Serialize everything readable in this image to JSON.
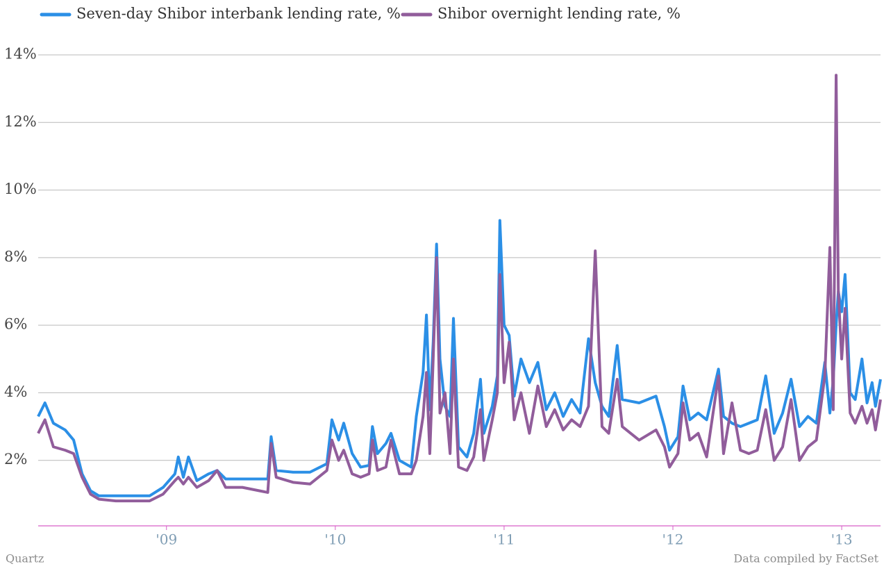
{
  "chart_data": {
    "type": "line",
    "credit": "Quartz",
    "source": "Data compiled by FactSet",
    "legend": "top-left",
    "grid": true,
    "xlim": [
      2008.24,
      2013.23
    ],
    "xticks": [
      {
        "value": 2009,
        "label": "'09"
      },
      {
        "value": 2010,
        "label": "'10"
      },
      {
        "value": 2011,
        "label": "'11"
      },
      {
        "value": 2012,
        "label": "'12"
      },
      {
        "value": 2013,
        "label": "'13"
      }
    ],
    "ylim": [
      0,
      14
    ],
    "yticks": [
      {
        "value": 2,
        "label": "2%"
      },
      {
        "value": 4,
        "label": "4%"
      },
      {
        "value": 6,
        "label": "6%"
      },
      {
        "value": 8,
        "label": "8%"
      },
      {
        "value": 10,
        "label": "10%"
      },
      {
        "value": 12,
        "label": "12%"
      },
      {
        "value": 14,
        "label": "14%"
      }
    ],
    "x": [
      2008.24,
      2008.28,
      2008.33,
      2008.4,
      2008.45,
      2008.5,
      2008.55,
      2008.6,
      2008.7,
      2008.8,
      2008.9,
      2008.98,
      2009.05,
      2009.07,
      2009.1,
      2009.13,
      2009.18,
      2009.25,
      2009.3,
      2009.35,
      2009.45,
      2009.55,
      2009.6,
      2009.62,
      2009.65,
      2009.75,
      2009.85,
      2009.95,
      2009.98,
      2010.02,
      2010.05,
      2010.1,
      2010.15,
      2010.2,
      2010.22,
      2010.25,
      2010.3,
      2010.33,
      2010.38,
      2010.45,
      2010.48,
      2010.52,
      2010.54,
      2010.56,
      2010.58,
      2010.6,
      2010.62,
      2010.65,
      2010.68,
      2010.7,
      2010.73,
      2010.78,
      2010.82,
      2010.86,
      2010.88,
      2010.93,
      2010.96,
      2010.975,
      2011.0,
      2011.03,
      2011.06,
      2011.1,
      2011.15,
      2011.2,
      2011.25,
      2011.3,
      2011.35,
      2011.4,
      2011.45,
      2011.5,
      2011.54,
      2011.58,
      2011.62,
      2011.67,
      2011.7,
      2011.8,
      2011.9,
      2011.95,
      2011.98,
      2012.03,
      2012.06,
      2012.1,
      2012.15,
      2012.2,
      2012.27,
      2012.3,
      2012.35,
      2012.4,
      2012.45,
      2012.5,
      2012.55,
      2012.6,
      2012.65,
      2012.7,
      2012.75,
      2012.8,
      2012.85,
      2012.9,
      2012.93,
      2012.95,
      2012.967,
      2012.98,
      2013.0,
      2013.02,
      2013.05,
      2013.08,
      2013.12,
      2013.15,
      2013.18,
      2013.2,
      2013.23
    ],
    "series": [
      {
        "name": "Seven-day Shibor interbank lending rate, %",
        "color": "#2b8fe6",
        "values": [
          3.3,
          3.7,
          3.1,
          2.9,
          2.6,
          1.6,
          1.1,
          0.95,
          0.95,
          0.95,
          0.95,
          1.2,
          1.6,
          2.1,
          1.5,
          2.1,
          1.4,
          1.6,
          1.7,
          1.45,
          1.45,
          1.45,
          1.45,
          2.7,
          1.7,
          1.65,
          1.65,
          1.9,
          3.2,
          2.6,
          3.1,
          2.2,
          1.8,
          1.85,
          3.0,
          2.2,
          2.5,
          2.8,
          2.0,
          1.8,
          3.3,
          4.6,
          6.3,
          3.5,
          5.5,
          8.4,
          5.0,
          3.6,
          3.3,
          6.2,
          2.4,
          2.1,
          2.8,
          4.4,
          2.8,
          3.6,
          4.5,
          9.1,
          6.0,
          5.7,
          3.9,
          5.0,
          4.3,
          4.9,
          3.5,
          4.0,
          3.3,
          3.8,
          3.4,
          5.6,
          4.3,
          3.6,
          3.3,
          5.4,
          3.8,
          3.7,
          3.9,
          3.0,
          2.3,
          2.7,
          4.2,
          3.2,
          3.4,
          3.2,
          4.7,
          3.3,
          3.1,
          3.0,
          3.1,
          3.2,
          4.5,
          2.8,
          3.4,
          4.4,
          3.0,
          3.3,
          3.1,
          4.9,
          3.4,
          4.4,
          6.0,
          7.0,
          6.4,
          7.5,
          4.0,
          3.8,
          5.0,
          3.7,
          4.3,
          3.6,
          4.4
        ]
      },
      {
        "name": "Shibor overnight lending rate, %",
        "color": "#915d9b",
        "values": [
          2.8,
          3.2,
          2.4,
          2.3,
          2.2,
          1.5,
          1.0,
          0.85,
          0.8,
          0.8,
          0.8,
          1.0,
          1.4,
          1.5,
          1.3,
          1.5,
          1.2,
          1.4,
          1.7,
          1.2,
          1.2,
          1.1,
          1.05,
          2.5,
          1.5,
          1.35,
          1.3,
          1.7,
          2.6,
          2.0,
          2.3,
          1.6,
          1.5,
          1.6,
          2.6,
          1.7,
          1.8,
          2.6,
          1.6,
          1.6,
          2.0,
          3.3,
          4.6,
          2.2,
          5.0,
          8.0,
          3.4,
          4.0,
          2.2,
          5.0,
          1.8,
          1.7,
          2.1,
          3.5,
          2.0,
          3.2,
          4.0,
          7.5,
          4.3,
          5.5,
          3.2,
          4.0,
          2.8,
          4.2,
          3.0,
          3.5,
          2.9,
          3.2,
          3.0,
          3.6,
          8.2,
          3.0,
          2.8,
          4.4,
          3.0,
          2.6,
          2.9,
          2.4,
          1.8,
          2.2,
          3.7,
          2.6,
          2.8,
          2.1,
          4.5,
          2.2,
          3.7,
          2.3,
          2.2,
          2.3,
          3.5,
          2.0,
          2.4,
          3.8,
          2.0,
          2.4,
          2.6,
          4.5,
          8.3,
          3.5,
          13.4,
          7.0,
          5.0,
          6.5,
          3.4,
          3.1,
          3.6,
          3.1,
          3.5,
          2.9,
          3.8
        ]
      }
    ]
  }
}
